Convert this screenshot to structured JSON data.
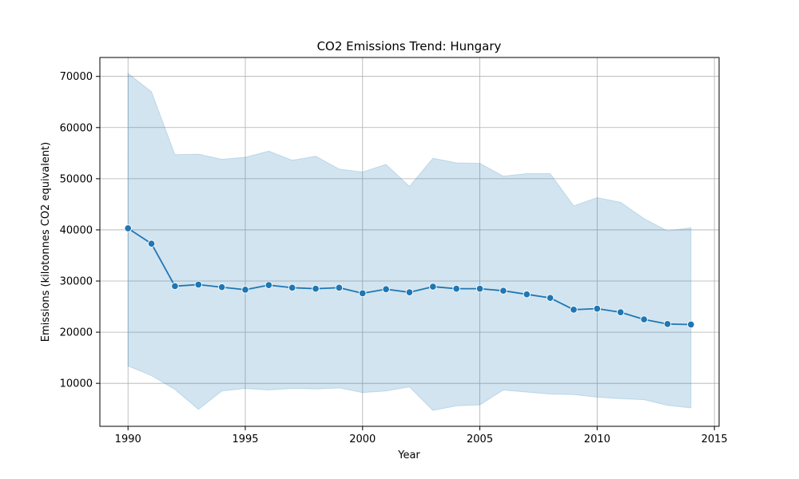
{
  "chart_data": {
    "type": "line",
    "title": "CO2 Emissions Trend: Hungary",
    "xlabel": "Year",
    "ylabel": "Emissions (kilotonnes CO2 equivalent)",
    "xlim": [
      1988.8,
      2015.2
    ],
    "ylim": [
      1600,
      73700
    ],
    "xticks": [
      1990,
      1995,
      2000,
      2005,
      2010,
      2015
    ],
    "yticks": [
      10000,
      20000,
      30000,
      40000,
      50000,
      60000,
      70000
    ],
    "grid": true,
    "series": [
      {
        "x": [
          1990,
          1991,
          1992,
          1993,
          1994,
          1995,
          1996,
          1997,
          1998,
          1999,
          2000,
          2001,
          2002,
          2003,
          2004,
          2005,
          2006,
          2007,
          2008,
          2009,
          2010,
          2011,
          2012,
          2013,
          2014
        ],
        "values": [
          40300,
          37300,
          29000,
          29300,
          28800,
          28300,
          29200,
          28700,
          28500,
          28700,
          27600,
          28400,
          27800,
          28900,
          28500,
          28500,
          28100,
          27400,
          26700,
          24400,
          24600,
          23900,
          22500,
          21600,
          21500
        ],
        "upper": [
          70600,
          67000,
          54700,
          54800,
          53800,
          54200,
          55400,
          53600,
          54400,
          51900,
          51300,
          52800,
          48500,
          54000,
          53100,
          53000,
          50500,
          51000,
          51000,
          44700,
          46300,
          45400,
          42200,
          39800,
          40400
        ],
        "lower": [
          13400,
          11500,
          8800,
          4900,
          8500,
          9000,
          8700,
          9000,
          8900,
          9100,
          8200,
          8500,
          9300,
          4700,
          5600,
          5800,
          8700,
          8300,
          7900,
          7800,
          7300,
          7000,
          6800,
          5700,
          5200
        ]
      }
    ],
    "colors": {
      "line": "#1f77b4",
      "band": "#1f77b4",
      "grid": "#b0b0b0",
      "axes": "#000000"
    }
  }
}
